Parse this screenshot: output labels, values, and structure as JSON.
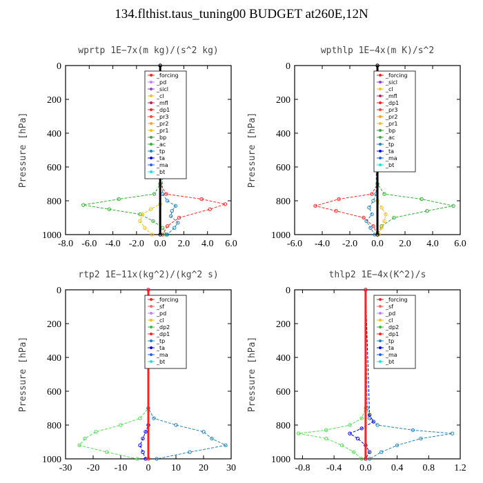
{
  "title": "134.flthist.taus_tuning00  BUDGET at260E,12N",
  "chart_data": [
    {
      "type": "line",
      "title": "wprtp  1E−7x(m kg)/(s^2 kg)",
      "ylabel": "Pressure [hPa]",
      "xlim": [
        -8,
        6
      ],
      "ylim": [
        1000,
        0
      ],
      "xticks": [
        "-8.0",
        "-6.0",
        "-4.0",
        "-2.0",
        "0.0",
        "2.0",
        "4.0",
        "6.0"
      ],
      "yticks": [
        "0",
        "200",
        "400",
        "600",
        "800",
        "1000"
      ],
      "legend": [
        "_forcing",
        "_pd",
        "_sicl",
        "_cl",
        "_mfl",
        "_dp1",
        "_pr3",
        "_pr2",
        "_pr1",
        "_bp",
        "_ac",
        "_tp",
        "_ta",
        "_ma",
        "_bt"
      ],
      "series": [
        {
          "name": "_dp1",
          "color": "#ff2020",
          "p": [
            0,
            700,
            760,
            790,
            820,
            850,
            900,
            950,
            1000
          ],
          "v": [
            0,
            0,
            0.5,
            3.5,
            5.5,
            4.2,
            1.6,
            0.6,
            0.2
          ]
        },
        {
          "name": "_ac",
          "color": "#30b030",
          "p": [
            0,
            700,
            760,
            790,
            825,
            850,
            880,
            920,
            960,
            1000
          ],
          "v": [
            0,
            0,
            -0.5,
            -3.5,
            -6.5,
            -4.3,
            -1.7,
            -0.6,
            0.2,
            0.5
          ]
        },
        {
          "name": "_pr1",
          "color": "#f0c020",
          "p": [
            0,
            820,
            850,
            880,
            920,
            960,
            1000
          ],
          "v": [
            0,
            0,
            -0.8,
            -1.5,
            -1.7,
            -1.3,
            -0.7
          ]
        },
        {
          "name": "_tp",
          "color": "#2080c0",
          "p": [
            0,
            760,
            800,
            830,
            860,
            890,
            930,
            960,
            1000
          ],
          "v": [
            0,
            0.2,
            0.6,
            1.3,
            1.0,
            0.9,
            1.5,
            1.2,
            0.6
          ]
        },
        {
          "name": "_forcing",
          "color": "#000000",
          "p": [
            0,
            1000
          ],
          "v": [
            0,
            0
          ]
        }
      ]
    },
    {
      "type": "line",
      "title": "wpthlp  1E−4x(m K)/s^2",
      "ylabel": "Pressure [hPa]",
      "xlim": [
        -6,
        6
      ],
      "ylim": [
        1000,
        0
      ],
      "xticks": [
        "-6.0",
        "-4.0",
        "-2.0",
        "0.0",
        "2.0",
        "4.0",
        "6.0"
      ],
      "yticks": [
        "0",
        "200",
        "400",
        "600",
        "800",
        "1000"
      ],
      "legend": [
        "_forcing",
        "_sicl",
        "_cl",
        "_mfl",
        "_dp1",
        "_pr3",
        "_pr2",
        "_pr1",
        "_bp",
        "_ac",
        "_tp",
        "_ta",
        "_ma",
        "_bt"
      ],
      "series": [
        {
          "name": "_dp1",
          "color": "#ff2020",
          "p": [
            0,
            700,
            760,
            790,
            830,
            860,
            900,
            950,
            1000
          ],
          "v": [
            0,
            0,
            -0.4,
            -2.8,
            -4.5,
            -3.0,
            -1.0,
            -0.3,
            0
          ]
        },
        {
          "name": "_ac",
          "color": "#30b030",
          "p": [
            0,
            700,
            760,
            790,
            830,
            860,
            900,
            950,
            1000
          ],
          "v": [
            0,
            0,
            0.5,
            3.2,
            5.5,
            3.6,
            1.2,
            0.3,
            0
          ]
        },
        {
          "name": "_pr1",
          "color": "#f0c020",
          "p": [
            0,
            800,
            840,
            880,
            920,
            960,
            1000
          ],
          "v": [
            0,
            0,
            0.3,
            0.6,
            0.5,
            0.3,
            0.1
          ]
        },
        {
          "name": "_tp",
          "color": "#2080c0",
          "p": [
            0,
            760,
            800,
            840,
            880,
            920,
            960,
            1000
          ],
          "v": [
            0,
            -0.1,
            -0.3,
            -0.6,
            -0.4,
            -0.8,
            -0.5,
            -0.2
          ]
        },
        {
          "name": "_forcing",
          "color": "#000000",
          "p": [
            0,
            1000
          ],
          "v": [
            0,
            0
          ]
        }
      ]
    },
    {
      "type": "line",
      "title": "rtp2  1E−11x(kg^2)/(kg^2 s)",
      "ylabel": "Pressure [hPa]",
      "xlim": [
        -30,
        30
      ],
      "ylim": [
        1000,
        0
      ],
      "xticks": [
        "-30",
        "-20",
        "-10",
        "0",
        "10",
        "20",
        "30"
      ],
      "yticks": [
        "0",
        "200",
        "400",
        "600",
        "800",
        "1000"
      ],
      "legend": [
        "_forcing",
        "_sf",
        "_pd",
        "_cl",
        "_dp2",
        "_dp1",
        "_tp",
        "_ta",
        "_ma",
        "_bt"
      ],
      "series": [
        {
          "name": "_dp1",
          "color": "#50e050",
          "p": [
            0,
            700,
            760,
            800,
            840,
            880,
            920,
            960,
            1000
          ],
          "v": [
            0,
            0,
            -3,
            -10,
            -19,
            -23,
            -25,
            -15,
            -4
          ]
        },
        {
          "name": "_tp",
          "color": "#2080c0",
          "p": [
            0,
            700,
            760,
            800,
            840,
            880,
            920,
            960,
            1000
          ],
          "v": [
            0,
            0,
            2,
            10,
            20,
            23,
            28,
            15,
            3
          ]
        },
        {
          "name": "_ta",
          "color": "#0000ff",
          "p": [
            0,
            800,
            840,
            880,
            920,
            960,
            1000
          ],
          "v": [
            0,
            0,
            -1,
            -2,
            -3,
            -2,
            -1
          ]
        },
        {
          "name": "_forcing",
          "color": "#ff2020",
          "p": [
            0,
            1000
          ],
          "v": [
            0,
            0
          ]
        }
      ]
    },
    {
      "type": "line",
      "title": "thlp2  1E−4x(K^2)/s",
      "ylabel": "Pressure [hPa]",
      "xlim": [
        -0.9,
        1.2
      ],
      "ylim": [
        1000,
        0
      ],
      "xticks": [
        "-0.8",
        "-0.4",
        "0.0",
        "0.4",
        "0.8",
        "1.2"
      ],
      "yticks": [
        "0",
        "200",
        "400",
        "600",
        "800",
        "1000"
      ],
      "legend": [
        "_forcing",
        "_sf",
        "_pd",
        "_cl",
        "_dp2",
        "_dp1",
        "_tp",
        "_ta",
        "_ma",
        "_bt"
      ],
      "series": [
        {
          "name": "_dp1",
          "color": "#50e050",
          "p": [
            0,
            700,
            760,
            800,
            830,
            850,
            880,
            920,
            960,
            1000
          ],
          "v": [
            0,
            0,
            -0.05,
            -0.2,
            -0.5,
            -0.85,
            -0.5,
            -0.3,
            -0.15,
            -0.05
          ]
        },
        {
          "name": "_tp",
          "color": "#2080c0",
          "p": [
            0,
            700,
            760,
            800,
            830,
            850,
            880,
            920,
            960,
            1000
          ],
          "v": [
            0,
            0.02,
            0.05,
            0.15,
            0.6,
            1.1,
            0.7,
            0.4,
            0.2,
            0.05
          ]
        },
        {
          "name": "_ta",
          "color": "#0000ff",
          "p": [
            0,
            740,
            780,
            820,
            850,
            880,
            920,
            960,
            1000
          ],
          "v": [
            0,
            0.05,
            0.1,
            -0.05,
            -0.2,
            -0.1,
            0,
            0.05,
            0
          ]
        },
        {
          "name": "_forcing",
          "color": "#ff2020",
          "p": [
            0,
            1000
          ],
          "v": [
            0,
            0
          ]
        }
      ]
    }
  ]
}
